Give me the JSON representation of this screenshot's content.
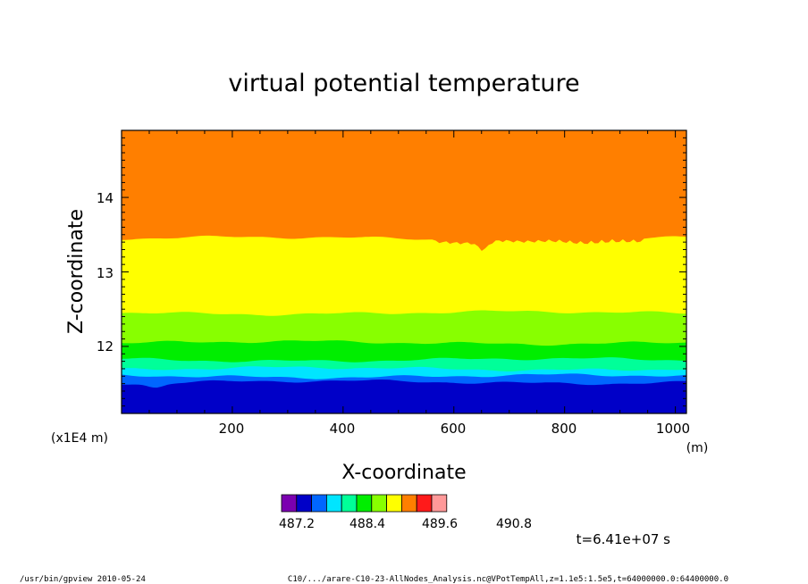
{
  "chart_data": {
    "type": "contour",
    "title": "virtual potential temperature",
    "xlabel": "X-coordinate",
    "ylabel": "Z-coordinate",
    "x_units": "(m)",
    "y_scale_note": "(x1E4 m)",
    "xlim": [
      0,
      1020
    ],
    "ylim": [
      11.1,
      14.9
    ],
    "x_ticks": [
      "200",
      "400",
      "600",
      "800",
      "1000"
    ],
    "x_tick_values": [
      200,
      400,
      600,
      800,
      1000
    ],
    "y_ticks": [
      "12",
      "13",
      "14"
    ],
    "y_tick_values": [
      12,
      13,
      14
    ],
    "colorbar": {
      "colors": [
        "#7b00b0",
        "#0000c8",
        "#0066ff",
        "#00e5ff",
        "#00ff99",
        "#00ee00",
        "#88ff00",
        "#ffff00",
        "#ff7f00",
        "#ff1a1a",
        "#ff9999"
      ],
      "labels": [
        "487.2",
        "488.4",
        "489.6",
        "490.8"
      ]
    },
    "bands": [
      {
        "color": "#ff7f00",
        "top_z": 14.9
      },
      {
        "color": "#ffff00",
        "top_z": 13.45
      },
      {
        "color": "#88ff00",
        "top_z": 12.45
      },
      {
        "color": "#00ee00",
        "top_z": 12.05
      },
      {
        "color": "#00ff99",
        "top_z": 11.82
      },
      {
        "color": "#00e5ff",
        "top_z": 11.7
      },
      {
        "color": "#0066ff",
        "top_z": 11.6
      },
      {
        "color": "#0000c8",
        "top_z": 11.52
      }
    ],
    "time_label": "t=6.41e+07 s"
  },
  "footer": {
    "left": "/usr/bin/gpview  2010-05-24",
    "right": "C10/.../arare-C10-23-AllNodes_Analysis.nc@VPotTempAll,z=1.1e5:1.5e5,t=64000000.0:64400000.0"
  }
}
